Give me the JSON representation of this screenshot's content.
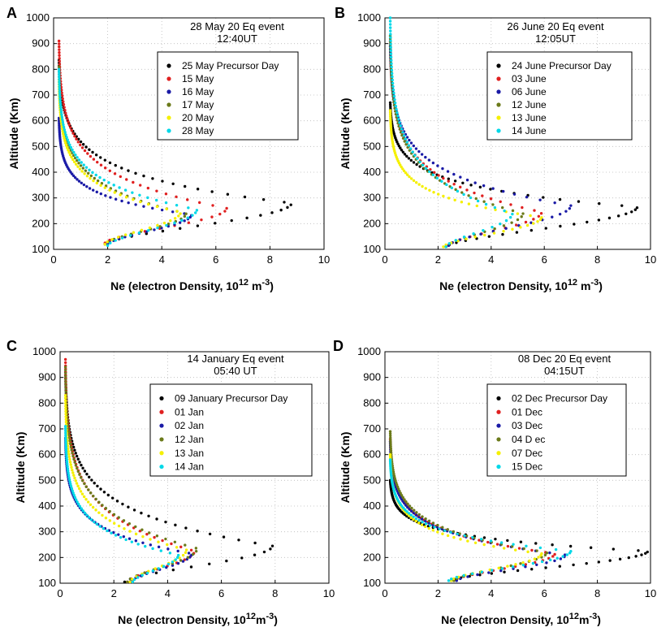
{
  "chart_data": [
    {
      "panel": "A",
      "type": "scatter",
      "title": [
        "28 May 20 Eq event",
        "12:40UT"
      ],
      "xlabel": "Ne (electron Density, 10",
      "xlabel_sup": "12",
      "xlabel_unit": " m",
      "xlabel_sup2": "-3",
      "xlabel_close": ")",
      "ylabel": "Altitude (Km)",
      "xlim": [
        0,
        10
      ],
      "ylim": [
        100,
        1000
      ],
      "xticks": [
        "0",
        "2",
        "4",
        "6",
        "8",
        "10"
      ],
      "yticks": [
        "100",
        "200",
        "300",
        "400",
        "500",
        "600",
        "700",
        "800",
        "900",
        "1000"
      ],
      "legend": "right-upper",
      "series": [
        {
          "name": "25 May Precursor Day",
          "color": "#000000",
          "profile": {
            "top": 835,
            "hpeak": 280,
            "nmax": 8.8,
            "bottom": 120,
            "nbottom": 1.9,
            "ntop": 0.2
          }
        },
        {
          "name": "15 May",
          "color": "#e02020",
          "profile": {
            "top": 910,
            "hpeak": 260,
            "nmax": 6.4,
            "bottom": 125,
            "nbottom": 1.9,
            "ntop": 0.2
          }
        },
        {
          "name": "16 May",
          "color": "#1a1aa6",
          "profile": {
            "top": 610,
            "hpeak": 235,
            "nmax": 5.1,
            "bottom": 120,
            "nbottom": 2.0,
            "ntop": 0.2
          }
        },
        {
          "name": "17 May",
          "color": "#6b7a1a",
          "profile": {
            "top": 810,
            "hpeak": 240,
            "nmax": 4.9,
            "bottom": 120,
            "nbottom": 1.9,
            "ntop": 0.2
          }
        },
        {
          "name": "20 May",
          "color": "#f5f000",
          "profile": {
            "top": 760,
            "hpeak": 245,
            "nmax": 4.7,
            "bottom": 120,
            "nbottom": 1.9,
            "ntop": 0.2
          }
        },
        {
          "name": "28 May",
          "color": "#00d8e8",
          "profile": {
            "top": 800,
            "hpeak": 255,
            "nmax": 5.3,
            "bottom": 115,
            "nbottom": 2.0,
            "ntop": 0.2
          }
        }
      ]
    },
    {
      "panel": "B",
      "type": "scatter",
      "title": [
        "26 June 20 Eq event",
        "12:05UT"
      ],
      "xlabel": "Ne (electron Density, 10",
      "xlabel_sup": "12",
      "xlabel_unit": " m",
      "xlabel_sup2": "-3",
      "xlabel_close": ")",
      "ylabel": "Altitude (Km)",
      "xlim": [
        0,
        10
      ],
      "ylim": [
        100,
        1000
      ],
      "xticks": [
        "0",
        "2",
        "4",
        "6",
        "8",
        "10"
      ],
      "yticks": [
        "100",
        "200",
        "300",
        "400",
        "500",
        "600",
        "700",
        "800",
        "900",
        "1000"
      ],
      "legend": "right-upper",
      "series": [
        {
          "name": "24 June Precursor Day",
          "color": "#000000",
          "profile": {
            "top": 670,
            "hpeak": 265,
            "nmax": 9.5,
            "bottom": 110,
            "nbottom": 2.3,
            "ntop": 0.2
          }
        },
        {
          "name": "03 June",
          "color": "#e02020",
          "profile": {
            "top": 910,
            "hpeak": 245,
            "nmax": 5.9,
            "bottom": 115,
            "nbottom": 2.4,
            "ntop": 0.2
          }
        },
        {
          "name": "06 June",
          "color": "#1a1aa6",
          "profile": {
            "top": 890,
            "hpeak": 270,
            "nmax": 7.0,
            "bottom": 115,
            "nbottom": 2.4,
            "ntop": 0.2
          }
        },
        {
          "name": "12 June",
          "color": "#6b7a1a",
          "profile": {
            "top": 930,
            "hpeak": 240,
            "nmax": 5.2,
            "bottom": 110,
            "nbottom": 2.3,
            "ntop": 0.2
          }
        },
        {
          "name": "13 June",
          "color": "#f5f000",
          "profile": {
            "top": 640,
            "hpeak": 225,
            "nmax": 5.9,
            "bottom": 110,
            "nbottom": 2.2,
            "ntop": 0.2
          }
        },
        {
          "name": "14 June",
          "color": "#00d8e8",
          "profile": {
            "top": 1000,
            "hpeak": 240,
            "nmax": 4.8,
            "bottom": 110,
            "nbottom": 2.3,
            "ntop": 0.2
          }
        }
      ]
    },
    {
      "panel": "C",
      "type": "scatter",
      "title": [
        "14 January Eq event",
        "05:40 UT"
      ],
      "xlabel": "Ne (electron Density, 10",
      "xlabel_sup": "12",
      "xlabel_unit": "m",
      "xlabel_sup2": "-3",
      "xlabel_close": ")",
      "ylabel": "Altitude (Km)",
      "xlim": [
        0,
        10
      ],
      "ylim": [
        100,
        1000
      ],
      "xticks": [
        "0",
        "2",
        "4",
        "6",
        "8",
        "10"
      ],
      "yticks": [
        "100",
        "200",
        "300",
        "400",
        "500",
        "600",
        "700",
        "800",
        "900",
        "1000"
      ],
      "legend": "right-upper",
      "series": [
        {
          "name": "09 January Precursor Day",
          "color": "#000000",
          "profile": {
            "top": 920,
            "hpeak": 245,
            "nmax": 7.9,
            "bottom": 105,
            "nbottom": 2.4,
            "ntop": 0.2
          }
        },
        {
          "name": "01 Jan",
          "color": "#e02020",
          "profile": {
            "top": 970,
            "hpeak": 225,
            "nmax": 5.0,
            "bottom": 105,
            "nbottom": 2.5,
            "ntop": 0.2
          }
        },
        {
          "name": "02 Jan",
          "color": "#1a1aa6",
          "profile": {
            "top": 665,
            "hpeak": 215,
            "nmax": 4.9,
            "bottom": 105,
            "nbottom": 2.6,
            "ntop": 0.2
          }
        },
        {
          "name": "12 Jan",
          "color": "#6b7a1a",
          "profile": {
            "top": 940,
            "hpeak": 235,
            "nmax": 5.1,
            "bottom": 105,
            "nbottom": 2.5,
            "ntop": 0.2
          }
        },
        {
          "name": "13 Jan",
          "color": "#f5f000",
          "profile": {
            "top": 830,
            "hpeak": 230,
            "nmax": 4.7,
            "bottom": 105,
            "nbottom": 2.6,
            "ntop": 0.2
          }
        },
        {
          "name": "14 Jan",
          "color": "#00d8e8",
          "profile": {
            "top": 710,
            "hpeak": 210,
            "nmax": 4.4,
            "bottom": 105,
            "nbottom": 2.7,
            "ntop": 0.2
          }
        }
      ]
    },
    {
      "panel": "D",
      "type": "scatter",
      "title": [
        "08 Dec 20 Eq event",
        "04:15UT"
      ],
      "xlabel": "Ne (electron Density, 10",
      "xlabel_sup": "12",
      "xlabel_unit": "m",
      "xlabel_sup2": "-3",
      "xlabel_close": ")",
      "ylabel": "Altitude (Km)",
      "xlim": [
        0,
        10
      ],
      "ylim": [
        100,
        1000
      ],
      "xticks": [
        "0",
        "2",
        "4",
        "6",
        "8",
        "10"
      ],
      "yticks": [
        "100",
        "200",
        "300",
        "400",
        "500",
        "600",
        "700",
        "800",
        "900",
        "1000"
      ],
      "legend": "right-upper",
      "series": [
        {
          "name": "02 Dec Precursor Day",
          "color": "#000000",
          "profile": {
            "top": 500,
            "hpeak": 225,
            "nmax": 9.9,
            "bottom": 110,
            "nbottom": 2.5,
            "ntop": 0.2
          }
        },
        {
          "name": "01 Dec",
          "color": "#e02020",
          "profile": {
            "top": 660,
            "hpeak": 215,
            "nmax": 6.4,
            "bottom": 110,
            "nbottom": 2.6,
            "ntop": 0.2
          }
        },
        {
          "name": "03 Dec",
          "color": "#1a1aa6",
          "profile": {
            "top": 650,
            "hpeak": 210,
            "nmax": 6.8,
            "bottom": 110,
            "nbottom": 2.7,
            "ntop": 0.2
          }
        },
        {
          "name": "04 D ec",
          "color": "#6b7a1a",
          "profile": {
            "top": 690,
            "hpeak": 220,
            "nmax": 6.1,
            "bottom": 110,
            "nbottom": 2.6,
            "ntop": 0.2
          }
        },
        {
          "name": "07 Dec",
          "color": "#f5f000",
          "profile": {
            "top": 600,
            "hpeak": 215,
            "nmax": 5.9,
            "bottom": 110,
            "nbottom": 2.5,
            "ntop": 0.2
          }
        },
        {
          "name": "15 Dec",
          "color": "#00d8e8",
          "profile": {
            "top": 580,
            "hpeak": 225,
            "nmax": 7.0,
            "bottom": 110,
            "nbottom": 2.4,
            "ntop": 0.2
          }
        }
      ]
    }
  ]
}
